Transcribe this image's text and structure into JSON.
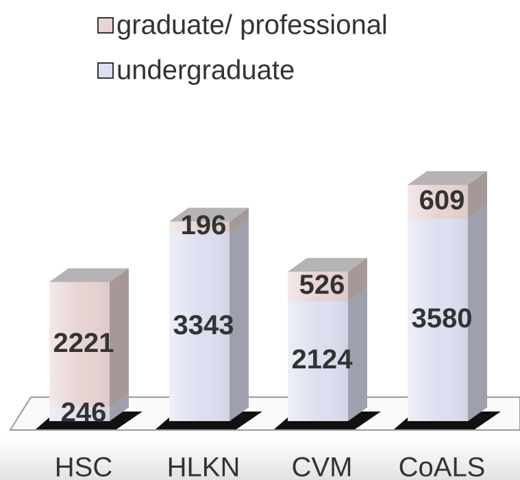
{
  "chart_data": {
    "type": "bar",
    "categories": [
      "HSC",
      "HLKN",
      "CVM",
      "CoALS"
    ],
    "stacked": true,
    "series": [
      {
        "name": "undergraduate",
        "color": "#dcdff0",
        "values": [
          246,
          3343,
          2124,
          3580
        ]
      },
      {
        "name": "graduate/ professional",
        "color": "#e8d3d3",
        "values": [
          2221,
          196,
          526,
          609
        ]
      }
    ],
    "legend_order": [
      1,
      0
    ]
  }
}
